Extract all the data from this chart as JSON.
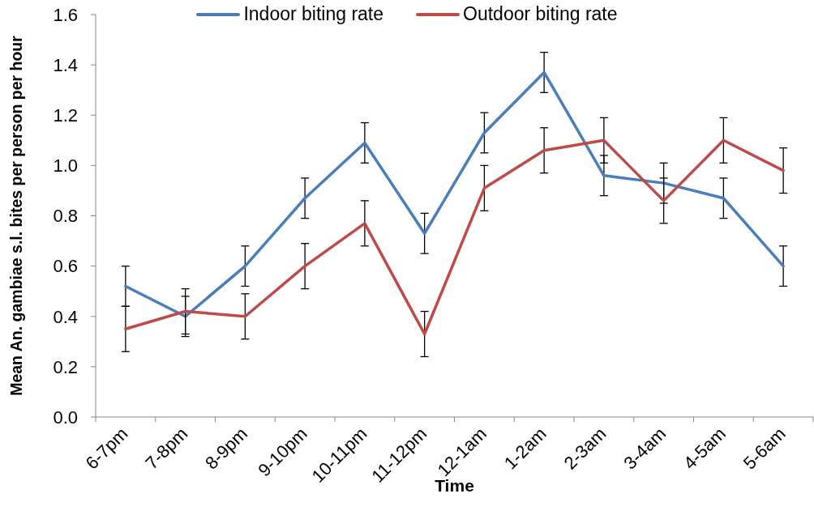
{
  "chart_data": {
    "type": "line",
    "xlabel": "Time",
    "ylabel": "Mean An. gambiae s.l. bites per person per hour",
    "categories": [
      "6-7pm",
      "7-8pm",
      "8-9pm",
      "9-10pm",
      "10-11pm",
      "11-12pm",
      "12-1am",
      "1-2am",
      "2-3am",
      "3-4am",
      "4-5am",
      "5-6am"
    ],
    "series": [
      {
        "name": "Indoor biting rate",
        "color": "#4a7ebb",
        "values": [
          0.52,
          0.4,
          0.6,
          0.87,
          1.09,
          0.73,
          1.13,
          1.37,
          0.96,
          0.93,
          0.87,
          0.6
        ],
        "errors": [
          0.08,
          0.08,
          0.08,
          0.08,
          0.08,
          0.08,
          0.08,
          0.08,
          0.08,
          0.08,
          0.08,
          0.08
        ]
      },
      {
        "name": "Outdoor biting rate",
        "color": "#be4b48",
        "values": [
          0.35,
          0.42,
          0.4,
          0.6,
          0.77,
          0.33,
          0.91,
          1.06,
          1.1,
          0.86,
          1.1,
          0.98
        ],
        "errors": [
          0.09,
          0.09,
          0.09,
          0.09,
          0.09,
          0.09,
          0.09,
          0.09,
          0.09,
          0.09,
          0.09,
          0.09
        ]
      }
    ],
    "ylim": [
      0,
      1.6
    ],
    "yticks": [
      {
        "value": 0,
        "label": "0.0"
      },
      0.2,
      0.4,
      0.6,
      0.8,
      {
        "value": 1,
        "label": "1.0"
      },
      1.2,
      1.4,
      1.6
    ],
    "legend": "top",
    "marker": "none",
    "line_style": "solid"
  }
}
